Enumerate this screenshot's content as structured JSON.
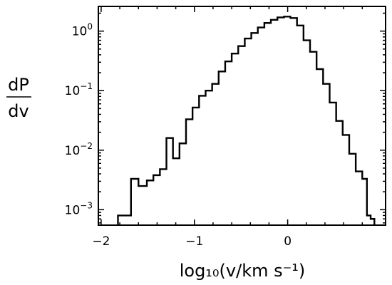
{
  "chart_data": {
    "type": "histogram",
    "title": "",
    "xlabel": "log₁₀(v/km s⁻¹)",
    "ylabel_numerator": "dP",
    "ylabel_denominator": "dv",
    "x_scale": "linear",
    "y_scale": "log",
    "xlim": [
      -2.03,
      1.05
    ],
    "ylim": [
      0.00055,
      2.6
    ],
    "grid": false,
    "legend": "none",
    "color": "#000000",
    "x_ticks": [
      {
        "value": -2,
        "label": "−2"
      },
      {
        "value": -1,
        "label": "−1"
      },
      {
        "value": 0,
        "label": "0"
      }
    ],
    "y_ticks": [
      {
        "value": 0.001,
        "base": "10",
        "exp": "−3"
      },
      {
        "value": 0.01,
        "base": "10",
        "exp": "−2"
      },
      {
        "value": 0.1,
        "base": "10",
        "exp": "−1"
      },
      {
        "value": 1,
        "base": "10",
        "exp": "0"
      }
    ],
    "bin_edges": [
      -1.82,
      -1.68,
      -1.6,
      -1.51,
      -1.44,
      -1.37,
      -1.3,
      -1.23,
      -1.16,
      -1.09,
      -1.02,
      -0.95,
      -0.88,
      -0.81,
      -0.74,
      -0.67,
      -0.6,
      -0.53,
      -0.46,
      -0.39,
      -0.32,
      -0.25,
      -0.18,
      -0.11,
      -0.04,
      0.03,
      0.1,
      0.17,
      0.24,
      0.31,
      0.38,
      0.45,
      0.52,
      0.59,
      0.66,
      0.73,
      0.8,
      0.85,
      0.89,
      0.93
    ],
    "values": [
      0.0008,
      0.0033,
      0.0025,
      0.0031,
      0.0038,
      0.0048,
      0.016,
      0.0073,
      0.013,
      0.033,
      0.052,
      0.082,
      0.1,
      0.13,
      0.21,
      0.31,
      0.42,
      0.56,
      0.75,
      0.93,
      1.15,
      1.37,
      1.55,
      1.7,
      1.75,
      1.66,
      1.24,
      0.7,
      0.45,
      0.23,
      0.13,
      0.063,
      0.031,
      0.018,
      0.0087,
      0.0044,
      0.0033,
      0.0008,
      0.0007
    ]
  }
}
